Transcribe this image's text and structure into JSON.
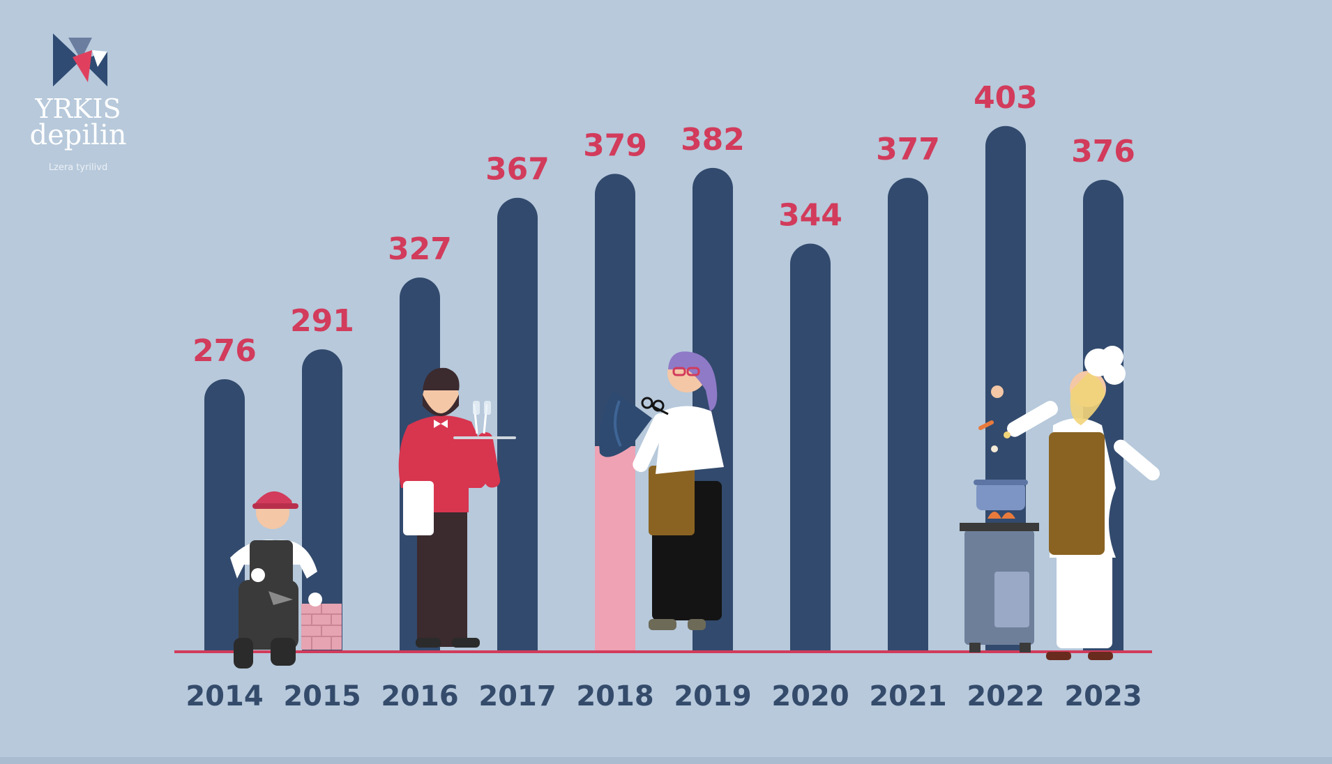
{
  "logo": {
    "line1": "YRKIS",
    "line2": "depilin",
    "tagline": "Lzera tyrilivd"
  },
  "colors": {
    "background": "#b7c9db",
    "bar": "#324a6d",
    "bar_highlight": "#eea2b4",
    "value_label": "#d23b5b",
    "year_label": "#344b6b",
    "baseline": "#d23b5b"
  },
  "chart_data": {
    "type": "bar",
    "categories": [
      "2014",
      "2015",
      "2016",
      "2017",
      "2018",
      "2019",
      "2020",
      "2021",
      "2022",
      "2023"
    ],
    "values": [
      276,
      291,
      327,
      367,
      379,
      382,
      344,
      377,
      403,
      376
    ],
    "title": "",
    "xlabel": "",
    "ylabel": "",
    "ylim": [
      0,
      403
    ],
    "grid": false,
    "legend": "none"
  },
  "illustrations": [
    "bricklayer-figure",
    "waiter-figure",
    "hairdresser-figure",
    "chef-figure"
  ]
}
